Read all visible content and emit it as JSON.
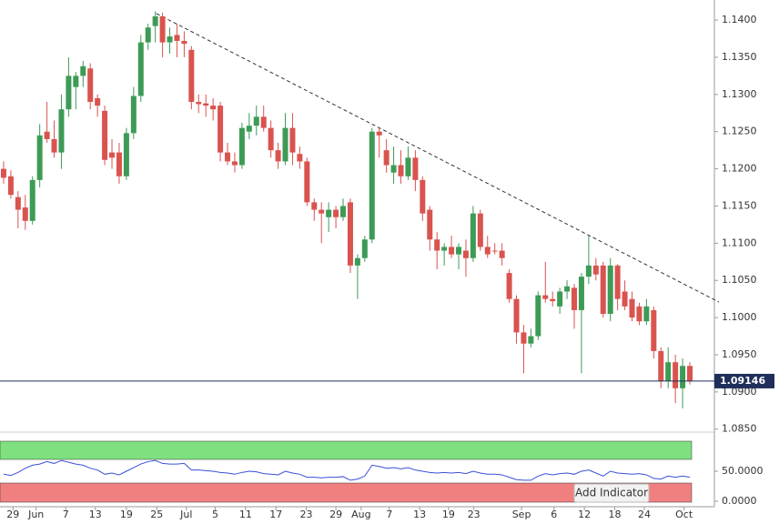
{
  "chart_data": [
    {
      "type": "candlestick",
      "up_color": "#3d9b56",
      "down_color": "#d9534f",
      "open": [
        1.12,
        1.119,
        1.1162,
        1.1148,
        1.113,
        1.1185,
        1.125,
        1.124,
        1.1222,
        1.128,
        1.131,
        1.1325,
        1.1335,
        1.1295,
        1.1278,
        1.1222,
        1.1222,
        1.119,
        1.1248,
        1.1298,
        1.137,
        1.1392,
        1.1405,
        1.137,
        1.138,
        1.1372,
        1.136,
        1.129,
        1.1288,
        1.1285,
        1.1285,
        1.1222,
        1.121,
        1.1205,
        1.125,
        1.1258,
        1.127,
        1.1255,
        1.1225,
        1.121,
        1.1255,
        1.122,
        1.121,
        1.1155,
        1.1145,
        1.1135,
        1.1145,
        1.1135,
        1.1155,
        1.107,
        1.108,
        1.1105,
        1.125,
        1.1225,
        1.1195,
        1.1205,
        1.119,
        1.1215,
        1.1185,
        1.1145,
        1.1105,
        1.109,
        1.1095,
        1.1085,
        1.109,
        1.108,
        1.114,
        1.1095,
        1.109,
        1.109,
        1.106,
        1.1025,
        1.098,
        1.0965,
        1.0975,
        1.103,
        1.1025,
        1.1015,
        1.1035,
        1.104,
        1.101,
        1.1055,
        1.107,
        1.107,
        1.1005,
        1.107,
        1.1035,
        1.1025,
        1.1015,
        1.0995,
        1.101,
        1.0955,
        1.0915,
        1.094,
        1.0905,
        1.0935
      ],
      "high": [
        1.121,
        1.1198,
        1.117,
        1.1165,
        1.119,
        1.126,
        1.129,
        1.1265,
        1.13,
        1.135,
        1.133,
        1.1345,
        1.1342,
        1.13,
        1.1285,
        1.124,
        1.1235,
        1.1255,
        1.131,
        1.138,
        1.1395,
        1.1412,
        1.141,
        1.139,
        1.1395,
        1.1385,
        1.1365,
        1.13,
        1.13,
        1.1295,
        1.129,
        1.1235,
        1.1222,
        1.1262,
        1.1275,
        1.1285,
        1.1285,
        1.1265,
        1.1235,
        1.1275,
        1.1275,
        1.123,
        1.1215,
        1.116,
        1.1155,
        1.1155,
        1.115,
        1.116,
        1.116,
        1.1085,
        1.111,
        1.1255,
        1.1255,
        1.124,
        1.123,
        1.1225,
        1.123,
        1.1225,
        1.119,
        1.115,
        1.1115,
        1.11,
        1.111,
        1.11,
        1.1105,
        1.115,
        1.1145,
        1.111,
        1.11,
        1.11,
        1.1065,
        1.103,
        1.099,
        1.0985,
        1.1035,
        1.1075,
        1.1035,
        1.104,
        1.105,
        1.1045,
        1.106,
        1.111,
        1.108,
        1.1075,
        1.108,
        1.1072,
        1.105,
        1.1035,
        1.102,
        1.1025,
        1.1015,
        1.096,
        1.096,
        1.095,
        1.0945,
        1.094
      ],
      "low": [
        1.118,
        1.116,
        1.112,
        1.1118,
        1.1125,
        1.1175,
        1.1235,
        1.1215,
        1.12,
        1.127,
        1.128,
        1.131,
        1.128,
        1.127,
        1.1205,
        1.12,
        1.118,
        1.1185,
        1.124,
        1.129,
        1.136,
        1.137,
        1.135,
        1.1355,
        1.135,
        1.135,
        1.128,
        1.1275,
        1.127,
        1.1265,
        1.121,
        1.1205,
        1.1195,
        1.12,
        1.124,
        1.1245,
        1.125,
        1.1215,
        1.12,
        1.1205,
        1.1205,
        1.12,
        1.115,
        1.113,
        1.11,
        1.1115,
        1.112,
        1.113,
        1.106,
        1.1025,
        1.1075,
        1.11,
        1.1215,
        1.1195,
        1.118,
        1.118,
        1.1185,
        1.117,
        1.113,
        1.109,
        1.1065,
        1.107,
        1.108,
        1.1065,
        1.1055,
        1.1075,
        1.109,
        1.108,
        1.1085,
        1.107,
        1.102,
        1.0965,
        1.0925,
        1.096,
        1.097,
        1.102,
        1.1015,
        1.1005,
        1.1025,
        1.0985,
        1.0925,
        1.1045,
        1.105,
        1.1,
        1.0995,
        1.101,
        1.101,
        1.0995,
        1.099,
        1.099,
        1.0945,
        1.0905,
        1.0905,
        1.0885,
        1.0878,
        1.091
      ],
      "close": [
        1.1188,
        1.1165,
        1.1145,
        1.113,
        1.1185,
        1.1245,
        1.124,
        1.1222,
        1.128,
        1.1325,
        1.1325,
        1.1338,
        1.129,
        1.1285,
        1.1212,
        1.1215,
        1.119,
        1.1248,
        1.1298,
        1.137,
        1.139,
        1.1405,
        1.137,
        1.1378,
        1.1372,
        1.1368,
        1.129,
        1.1287,
        1.1285,
        1.128,
        1.1222,
        1.121,
        1.1205,
        1.1255,
        1.1258,
        1.127,
        1.1255,
        1.1225,
        1.121,
        1.1255,
        1.1222,
        1.121,
        1.1155,
        1.1145,
        1.114,
        1.1145,
        1.1135,
        1.115,
        1.107,
        1.108,
        1.1105,
        1.125,
        1.1245,
        1.1205,
        1.1205,
        1.119,
        1.1215,
        1.1185,
        1.114,
        1.1105,
        1.109,
        1.1095,
        1.1085,
        1.1095,
        1.108,
        1.114,
        1.1095,
        1.1085,
        1.1089,
        1.108,
        1.1025,
        1.098,
        1.0965,
        1.0975,
        1.103,
        1.1025,
        1.1022,
        1.1035,
        1.1042,
        1.101,
        1.1055,
        1.107,
        1.1058,
        1.1005,
        1.107,
        1.1025,
        1.1015,
        1.1,
        1.0995,
        1.1015,
        1.0955,
        1.0915,
        1.094,
        1.0905,
        1.0935,
        1.0915
      ],
      "xlim": [
        -0.5,
        98.4
      ],
      "xticks": [
        {
          "value": 1.3,
          "label": "29"
        },
        {
          "value": 4.5,
          "label": "Jun"
        },
        {
          "value": 8.6,
          "label": "7"
        },
        {
          "value": 12.7,
          "label": "13"
        },
        {
          "value": 17,
          "label": "19"
        },
        {
          "value": 21.2,
          "label": "25"
        },
        {
          "value": 25.3,
          "label": "Jul"
        },
        {
          "value": 29.3,
          "label": "5"
        },
        {
          "value": 33.5,
          "label": "11"
        },
        {
          "value": 37.7,
          "label": "17"
        },
        {
          "value": 41.9,
          "label": "23"
        },
        {
          "value": 46,
          "label": "29"
        },
        {
          "value": 49.5,
          "label": "Aug"
        },
        {
          "value": 53.4,
          "label": "7"
        },
        {
          "value": 57.6,
          "label": "13"
        },
        {
          "value": 61.6,
          "label": "19"
        },
        {
          "value": 65.1,
          "label": "23"
        },
        {
          "value": 71.7,
          "label": "Sep"
        },
        {
          "value": 76.2,
          "label": "6"
        },
        {
          "value": 80.4,
          "label": "12"
        },
        {
          "value": 84.6,
          "label": "18"
        },
        {
          "value": 88.7,
          "label": "24"
        },
        {
          "value": 94.2,
          "label": "Oct"
        }
      ],
      "ylim": [
        1.0846,
        1.1427
      ],
      "yticks": [
        {
          "value": 1.085,
          "label": "1.0850"
        },
        {
          "value": 1.09,
          "label": "1.0900"
        },
        {
          "value": 1.095,
          "label": "1.0950"
        },
        {
          "value": 1.1,
          "label": "1.1000"
        },
        {
          "value": 1.105,
          "label": "1.1050"
        },
        {
          "value": 1.11,
          "label": "1.1100"
        },
        {
          "value": 1.115,
          "label": "1.1150"
        },
        {
          "value": 1.12,
          "label": "1.1200"
        },
        {
          "value": 1.125,
          "label": "1.1250"
        },
        {
          "value": 1.13,
          "label": "1.1300"
        },
        {
          "value": 1.135,
          "label": "1.1350"
        },
        {
          "value": 1.14,
          "label": "1.1400"
        }
      ],
      "current_price": 1.09146
    },
    {
      "type": "line",
      "color": "#3a4fd8",
      "values": [
        45,
        43,
        48,
        55,
        60,
        62,
        66,
        63,
        68,
        65,
        62,
        60,
        55,
        52,
        45,
        47,
        44,
        50,
        56,
        62,
        66,
        68,
        63,
        62,
        62,
        63,
        52,
        52,
        51,
        50,
        48,
        47,
        45,
        48,
        50,
        49,
        46,
        45,
        44,
        50,
        47,
        45,
        40,
        40,
        39,
        40,
        40,
        41,
        35,
        37,
        42,
        60,
        58,
        55,
        56,
        54,
        56,
        52,
        50,
        48,
        47,
        48,
        47,
        48,
        46,
        50,
        47,
        45,
        45,
        44,
        40,
        36,
        35,
        35,
        42,
        46,
        44,
        46,
        47,
        45,
        50,
        52,
        47,
        42,
        50,
        47,
        46,
        45,
        46,
        44,
        38,
        37,
        42,
        40,
        42,
        40
      ],
      "ylim": [
        0,
        100
      ],
      "yticks": [
        {
          "value": 50,
          "label": "50.0000"
        },
        {
          "value": 0,
          "label": "0.0000"
        }
      ],
      "button": "Add Indicator"
    }
  ]
}
